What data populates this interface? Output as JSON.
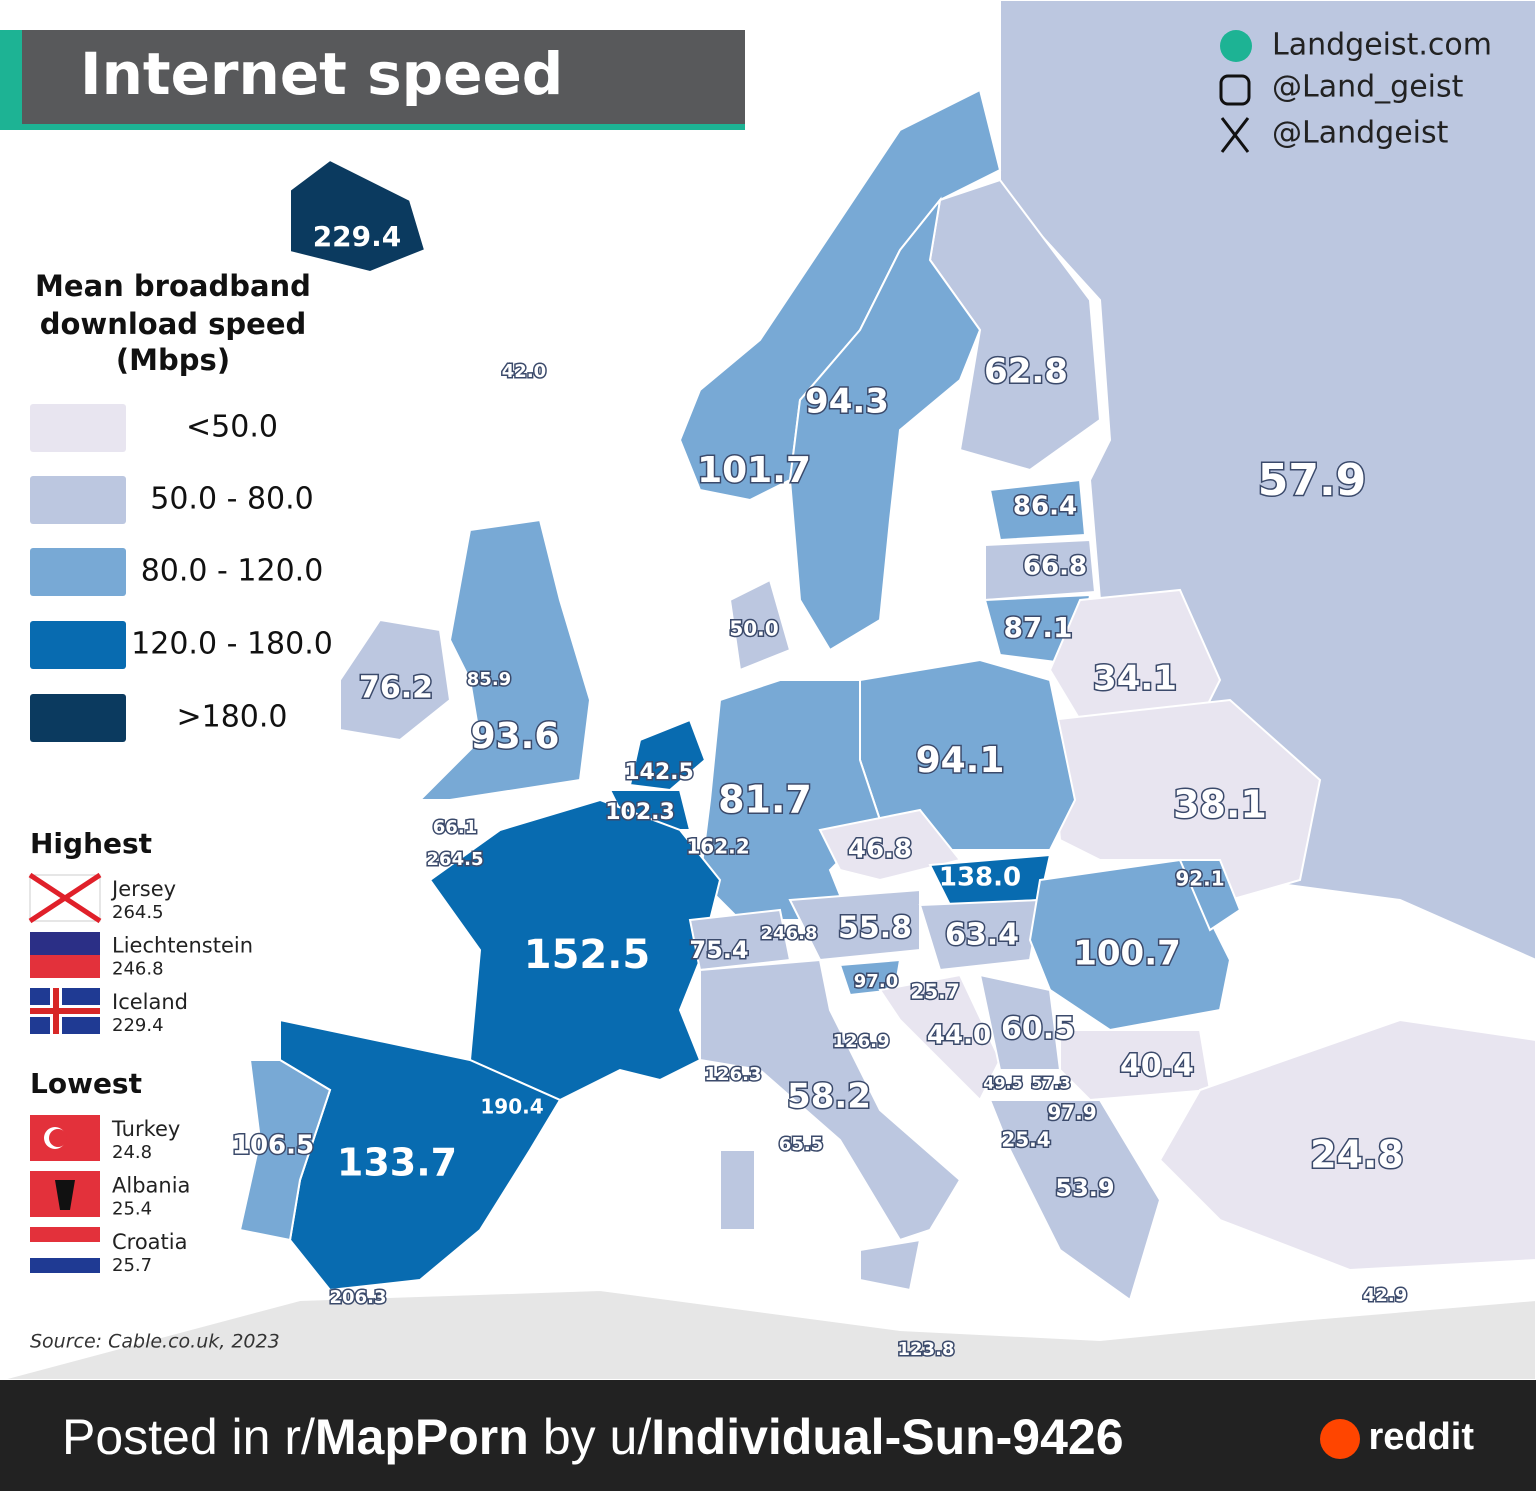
{
  "header": {
    "title": "Internet speed"
  },
  "social": [
    "Landgeist.com",
    "@Land_geist",
    "@Landgeist"
  ],
  "legend": {
    "title": [
      "Mean broadband",
      "download speed",
      "(Mbps)"
    ],
    "items": [
      {
        "label": "<50.0",
        "color": "#e8e5f0"
      },
      {
        "label": "50.0  -  80.0",
        "color": "#bcc7e0"
      },
      {
        "label": "80.0  -  120.0",
        "color": "#78a9d5"
      },
      {
        "label": "120.0  -  180.0",
        "color": "#086bb0"
      },
      {
        "label": ">180.0",
        "color": "#0b3a5f"
      }
    ]
  },
  "highest": {
    "title": "Highest",
    "items": [
      {
        "name": "Jersey",
        "value": "264.5"
      },
      {
        "name": "Liechtenstein",
        "value": "246.8"
      },
      {
        "name": "Iceland",
        "value": "229.4"
      }
    ]
  },
  "lowest": {
    "title": "Lowest",
    "items": [
      {
        "name": "Turkey",
        "value": "24.8"
      },
      {
        "name": "Albania",
        "value": "25.4"
      },
      {
        "name": "Croatia",
        "value": "25.7"
      }
    ]
  },
  "map": {
    "labels": [
      "229.4",
      "42.0",
      "62.8",
      "94.3",
      "101.7",
      "57.9",
      "86.4",
      "66.8",
      "50.0",
      "87.1",
      "34.1",
      "76.2",
      "85.9",
      "93.6",
      "94.1",
      "142.5",
      "81.7",
      "38.1",
      "102.3",
      "66.1",
      "162.2",
      "46.8",
      "264.5",
      "138.0",
      "92.1",
      "55.8",
      "246.8",
      "63.4",
      "75.4",
      "152.5",
      "100.7",
      "97.0",
      "25.7",
      "44.0",
      "60.5",
      "126.9",
      "40.4",
      "126.3",
      "49.5",
      "57.3",
      "58.2",
      "190.4",
      "97.9",
      "65.5",
      "25.4",
      "106.5",
      "24.8",
      "133.7",
      "53.9",
      "42.9",
      "206.3",
      "123.8"
    ]
  },
  "source": "Source: Cable.co.uk, 2023",
  "footer": {
    "prefix": "Posted in r/",
    "subreddit": "MapPorn",
    "middle": "by u/",
    "user": "Individual-Sun-9426",
    "brand": "reddit"
  }
}
